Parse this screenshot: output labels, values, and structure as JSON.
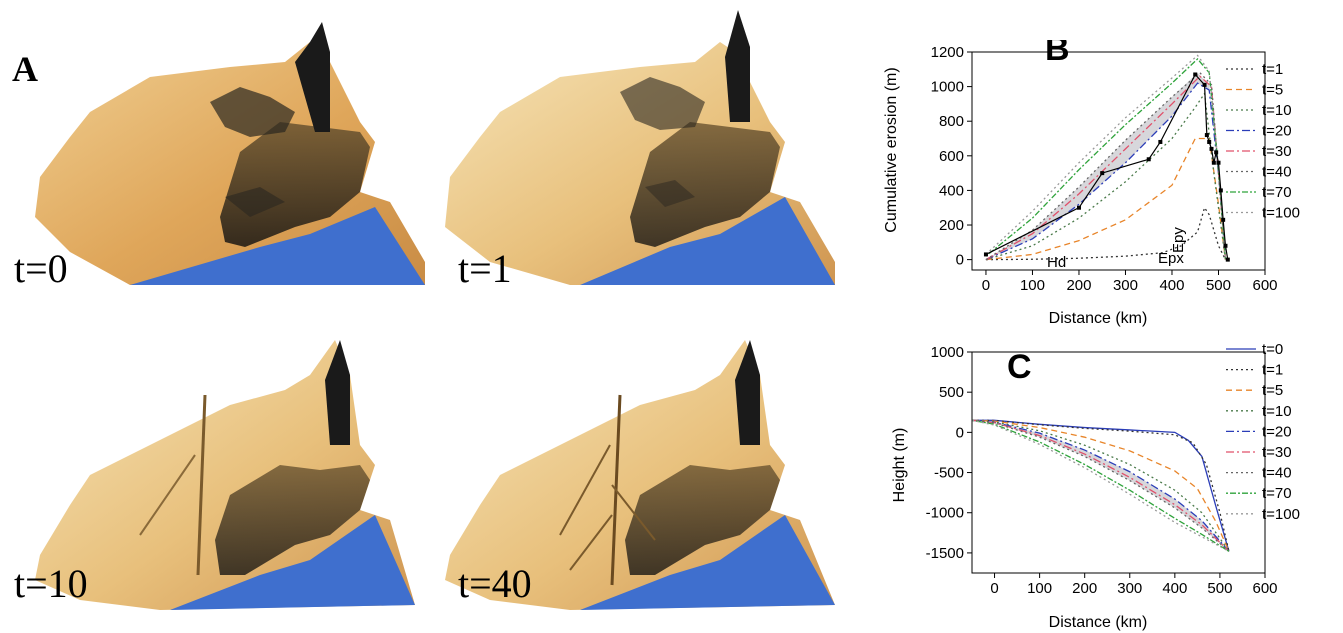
{
  "panels": {
    "a": "A",
    "b": "B",
    "c": "C"
  },
  "terrain_labels": [
    "t=0",
    "t=1",
    "t=10",
    "t=40"
  ],
  "colors": {
    "sand_light": "#f3d9a4",
    "sand_mid": "#e0ad62",
    "rock_dark": "#1d1b17",
    "sea": "#3f6fce",
    "shade": "#c9c9cf"
  },
  "chart_data": [
    {
      "type": "line",
      "panel": "B",
      "xlabel": "Distance (km)",
      "ylabel": "Cumulative erosion (m)",
      "xlim": [
        -30,
        600
      ],
      "ylim": [
        -60,
        1200
      ],
      "xticks": [
        "0",
        "100",
        "200",
        "300",
        "400",
        "500",
        "600"
      ],
      "yticks": [
        "0",
        "200",
        "400",
        "600",
        "800",
        "1000",
        "1200"
      ],
      "annotations": [
        "Hd",
        "Epx",
        "Epy"
      ],
      "legend_position": "right",
      "series": [
        {
          "name": "t=1",
          "color": "#333333",
          "dash": "2,3",
          "x": [
            0,
            100,
            200,
            300,
            380,
            420,
            455,
            470,
            480,
            500,
            515
          ],
          "y": [
            0,
            2,
            8,
            20,
            40,
            80,
            160,
            300,
            260,
            80,
            0
          ]
        },
        {
          "name": "t=5",
          "color": "#e8852a",
          "dash": "6,4",
          "x": [
            0,
            100,
            200,
            300,
            400,
            450,
            480,
            500,
            515
          ],
          "y": [
            0,
            30,
            110,
            230,
            430,
            700,
            700,
            320,
            0
          ]
        },
        {
          "name": "t=10",
          "color": "#4a7a4a",
          "dash": "2,3",
          "x": [
            0,
            100,
            200,
            300,
            400,
            450,
            470,
            490,
            515
          ],
          "y": [
            0,
            80,
            240,
            450,
            700,
            880,
            960,
            500,
            0
          ]
        },
        {
          "name": "t=20",
          "color": "#2b3db8",
          "dash": "8,3,2,3",
          "x": [
            0,
            100,
            200,
            300,
            400,
            455,
            480,
            500,
            515
          ],
          "y": [
            0,
            120,
            320,
            560,
            830,
            1020,
            980,
            500,
            0
          ]
        },
        {
          "name": "t=30",
          "color": "#e0506a",
          "dash": "8,3,2,3",
          "x": [
            0,
            100,
            200,
            300,
            400,
            460,
            485,
            500,
            515
          ],
          "y": [
            0,
            150,
            380,
            640,
            900,
            1060,
            1000,
            500,
            0
          ]
        },
        {
          "name": "t=40",
          "color": "#666666",
          "dash": "2,3",
          "x": [
            0,
            100,
            200,
            300,
            400,
            460,
            485,
            500,
            515
          ],
          "y": [
            0,
            170,
            420,
            690,
            940,
            1080,
            1010,
            500,
            0
          ]
        },
        {
          "name": "t=70",
          "color": "#2fa33b",
          "dash": "2,2,6,2",
          "x": [
            0,
            100,
            200,
            300,
            400,
            455,
            480,
            500,
            515
          ],
          "y": [
            20,
            240,
            520,
            780,
            1020,
            1160,
            1080,
            520,
            0
          ]
        },
        {
          "name": "t=100",
          "color": "#999999",
          "dash": "2,3",
          "x": [
            0,
            100,
            200,
            300,
            400,
            455,
            480,
            500,
            515
          ],
          "y": [
            30,
            280,
            560,
            820,
            1050,
            1180,
            1090,
            540,
            0
          ]
        }
      ],
      "observed": {
        "x": [
          0,
          200,
          250,
          350,
          375,
          450,
          470,
          475,
          480,
          485,
          490,
          495,
          500,
          505,
          510,
          515,
          520
        ],
        "y": [
          30,
          300,
          500,
          580,
          680,
          1070,
          1010,
          720,
          680,
          640,
          560,
          620,
          560,
          400,
          230,
          80,
          0
        ]
      },
      "band": {
        "x": [
          0,
          100,
          200,
          300,
          400,
          455,
          480,
          500,
          515
        ],
        "low": [
          0,
          120,
          320,
          560,
          830,
          1020,
          980,
          500,
          0
        ],
        "high": [
          0,
          170,
          420,
          690,
          940,
          1080,
          1010,
          500,
          0
        ]
      }
    },
    {
      "type": "line",
      "panel": "C",
      "xlabel": "Distance (km)",
      "ylabel": "Height (m)",
      "xlim": [
        -50,
        600
      ],
      "ylim": [
        -1750,
        1000
      ],
      "xticks": [
        "0",
        "100",
        "200",
        "300",
        "400",
        "500",
        "600"
      ],
      "yticks": [
        "1000",
        "500",
        "0",
        "-500",
        "-1000",
        "-1500"
      ],
      "legend_position": "right",
      "series": [
        {
          "name": "t=0",
          "color": "#2b3db8",
          "dash": "",
          "x": [
            -50,
            0,
            100,
            200,
            300,
            400,
            430,
            460,
            490,
            520
          ],
          "y": [
            150,
            150,
            100,
            60,
            30,
            0,
            -100,
            -300,
            -900,
            -1480
          ]
        },
        {
          "name": "t=1",
          "color": "#333333",
          "dash": "2,3",
          "x": [
            -50,
            0,
            100,
            200,
            300,
            400,
            440,
            470,
            500,
            520
          ],
          "y": [
            150,
            148,
            95,
            50,
            15,
            -30,
            -130,
            -400,
            -1000,
            -1480
          ]
        },
        {
          "name": "t=5",
          "color": "#e8852a",
          "dash": "6,4",
          "x": [
            -50,
            0,
            100,
            200,
            300,
            400,
            450,
            490,
            520
          ],
          "y": [
            150,
            140,
            60,
            -60,
            -230,
            -480,
            -700,
            -1100,
            -1480
          ]
        },
        {
          "name": "t=10",
          "color": "#4a7a4a",
          "dash": "2,3",
          "x": [
            -50,
            0,
            100,
            200,
            300,
            400,
            460,
            520
          ],
          "y": [
            150,
            130,
            20,
            -160,
            -400,
            -720,
            -1000,
            -1480
          ]
        },
        {
          "name": "t=20",
          "color": "#2b3db8",
          "dash": "8,3,2,3",
          "x": [
            -50,
            0,
            100,
            200,
            300,
            400,
            460,
            520
          ],
          "y": [
            150,
            125,
            -10,
            -220,
            -490,
            -830,
            -1100,
            -1480
          ]
        },
        {
          "name": "t=30",
          "color": "#e0506a",
          "dash": "8,3,2,3",
          "x": [
            -50,
            0,
            100,
            200,
            300,
            400,
            460,
            520
          ],
          "y": [
            150,
            120,
            -40,
            -270,
            -560,
            -900,
            -1150,
            -1480
          ]
        },
        {
          "name": "t=40",
          "color": "#666666",
          "dash": "2,3",
          "x": [
            -50,
            0,
            100,
            200,
            300,
            400,
            460,
            520
          ],
          "y": [
            150,
            118,
            -60,
            -300,
            -600,
            -940,
            -1190,
            -1480
          ]
        },
        {
          "name": "t=70",
          "color": "#2fa33b",
          "dash": "2,2,6,2",
          "x": [
            -50,
            0,
            100,
            200,
            300,
            400,
            460,
            520
          ],
          "y": [
            150,
            100,
            -120,
            -400,
            -720,
            -1070,
            -1270,
            -1480
          ]
        },
        {
          "name": "t=100",
          "color": "#999999",
          "dash": "2,3",
          "x": [
            -50,
            0,
            100,
            200,
            300,
            400,
            460,
            520
          ],
          "y": [
            150,
            90,
            -150,
            -440,
            -770,
            -1120,
            -1300,
            -1480
          ]
        }
      ],
      "band": {
        "x": [
          -50,
          0,
          100,
          200,
          300,
          400,
          460,
          520
        ],
        "low": [
          150,
          118,
          -60,
          -300,
          -600,
          -940,
          -1190,
          -1480
        ],
        "high": [
          150,
          125,
          -10,
          -220,
          -490,
          -830,
          -1100,
          -1480
        ]
      }
    }
  ]
}
